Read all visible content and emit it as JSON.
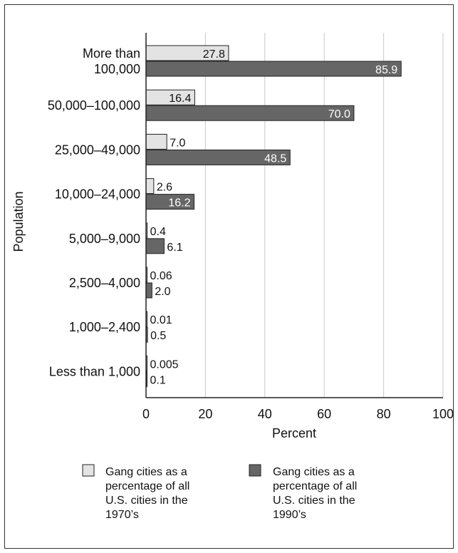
{
  "chart_data": {
    "type": "bar",
    "orientation": "horizontal",
    "categories": [
      "More than 100,000",
      "50,000–100,000",
      "25,000–49,000",
      "10,000–24,000",
      "5,000–9,000",
      "2,500–4,000",
      "1,000–2,400",
      "Less than 1,000"
    ],
    "category_lines": [
      [
        "More than",
        "100,000"
      ],
      [
        "50,000–100,000"
      ],
      [
        "25,000–49,000"
      ],
      [
        "10,000–24,000"
      ],
      [
        "5,000–9,000"
      ],
      [
        "2,500–4,000"
      ],
      [
        "1,000–2,400"
      ],
      [
        "Less than 1,000"
      ]
    ],
    "series": [
      {
        "name": "Gang cities as a percentage of all U.S. cities in the 1970’s",
        "legend_lines": [
          "Gang cities as a",
          "percentage of all",
          "U.S. cities in the",
          "1970’s"
        ],
        "color": "#e3e3e3",
        "values": [
          27.8,
          16.4,
          7.0,
          2.6,
          0.4,
          0.06,
          0.01,
          0.005
        ],
        "labels": [
          "27.8",
          "16.4",
          "7.0",
          "2.6",
          "0.4",
          "0.06",
          "0.01",
          "0.005"
        ]
      },
      {
        "name": "Gang cities as a percentage of all U.S. cities in the 1990’s",
        "legend_lines": [
          "Gang cities as a",
          "percentage of all",
          "U.S. cities in the",
          "1990’s"
        ],
        "color": "#666666",
        "values": [
          85.9,
          70.0,
          48.5,
          16.2,
          6.1,
          2.0,
          0.5,
          0.1
        ],
        "labels": [
          "85.9",
          "70.0",
          "48.5",
          "16.2",
          "6.1",
          "2.0",
          "0.5",
          "0.1"
        ]
      }
    ],
    "xlabel": "Percent",
    "ylabel": "Population",
    "xlim": [
      0,
      100
    ],
    "xticks": [
      0,
      20,
      40,
      60,
      80,
      100
    ],
    "grid": "vertical",
    "legend_position": "bottom"
  }
}
